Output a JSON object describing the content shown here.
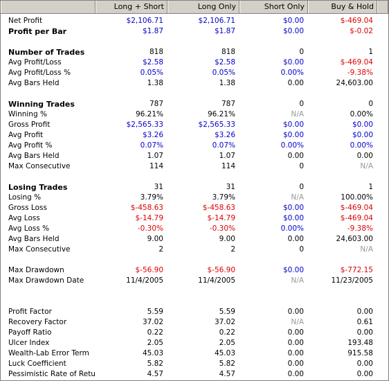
{
  "header": {
    "col1": "Long + Short",
    "col2": "Long Only",
    "col3": "Short Only",
    "col4": "Buy & Hold"
  },
  "colors": {
    "positive": "#0000cc",
    "negative": "#dd0000",
    "na": "#999999",
    "neutral": "#000000"
  },
  "rows": [
    {
      "label": "Net Profit",
      "bold": false,
      "vals": [
        "$2,106.71",
        "$2,106.71",
        "$0.00",
        "$-469.04"
      ],
      "cols": [
        "blue",
        "blue",
        "blue",
        "red"
      ]
    },
    {
      "label": "Profit per Bar",
      "bold": true,
      "vals": [
        "$1.87",
        "$1.87",
        "$0.00",
        "$-0.02"
      ],
      "cols": [
        "blue",
        "blue",
        "blue",
        "red"
      ]
    },
    {
      "gap": true
    },
    {
      "label": "Number of Trades",
      "bold": true,
      "vals": [
        "818",
        "818",
        "0",
        "1"
      ],
      "cols": [
        "black",
        "black",
        "black",
        "black"
      ]
    },
    {
      "label": "Avg Profit/Loss",
      "bold": false,
      "vals": [
        "$2.58",
        "$2.58",
        "$0.00",
        "$-469.04"
      ],
      "cols": [
        "blue",
        "blue",
        "blue",
        "red"
      ]
    },
    {
      "label": "Avg Profit/Loss %",
      "bold": false,
      "vals": [
        "0.05%",
        "0.05%",
        "0.00%",
        "-9.38%"
      ],
      "cols": [
        "blue",
        "blue",
        "blue",
        "red"
      ]
    },
    {
      "label": "Avg Bars Held",
      "bold": false,
      "vals": [
        "1.38",
        "1.38",
        "0.00",
        "24,603.00"
      ],
      "cols": [
        "black",
        "black",
        "black",
        "black"
      ]
    },
    {
      "gap": true
    },
    {
      "label": "Winning Trades",
      "bold": true,
      "vals": [
        "787",
        "787",
        "0",
        "0"
      ],
      "cols": [
        "black",
        "black",
        "black",
        "black"
      ]
    },
    {
      "label": "Winning %",
      "bold": false,
      "vals": [
        "96.21%",
        "96.21%",
        "N/A",
        "0.00%"
      ],
      "cols": [
        "black",
        "black",
        "gray",
        "black"
      ]
    },
    {
      "label": "Gross Profit",
      "bold": false,
      "vals": [
        "$2,565.33",
        "$2,565.33",
        "$0.00",
        "$0.00"
      ],
      "cols": [
        "blue",
        "blue",
        "blue",
        "blue"
      ]
    },
    {
      "label": "Avg Profit",
      "bold": false,
      "vals": [
        "$3.26",
        "$3.26",
        "$0.00",
        "$0.00"
      ],
      "cols": [
        "blue",
        "blue",
        "blue",
        "blue"
      ]
    },
    {
      "label": "Avg Profit %",
      "bold": false,
      "vals": [
        "0.07%",
        "0.07%",
        "0.00%",
        "0.00%"
      ],
      "cols": [
        "blue",
        "blue",
        "blue",
        "blue"
      ]
    },
    {
      "label": "Avg Bars Held",
      "bold": false,
      "vals": [
        "1.07",
        "1.07",
        "0.00",
        "0.00"
      ],
      "cols": [
        "black",
        "black",
        "black",
        "black"
      ]
    },
    {
      "label": "Max Consecutive",
      "bold": false,
      "vals": [
        "114",
        "114",
        "0",
        "N/A"
      ],
      "cols": [
        "black",
        "black",
        "black",
        "gray"
      ]
    },
    {
      "gap": true
    },
    {
      "label": "Losing Trades",
      "bold": true,
      "vals": [
        "31",
        "31",
        "0",
        "1"
      ],
      "cols": [
        "black",
        "black",
        "black",
        "black"
      ]
    },
    {
      "label": "Losing %",
      "bold": false,
      "vals": [
        "3.79%",
        "3.79%",
        "N/A",
        "100.00%"
      ],
      "cols": [
        "black",
        "black",
        "gray",
        "black"
      ]
    },
    {
      "label": "Gross Loss",
      "bold": false,
      "vals": [
        "$-458.63",
        "$-458.63",
        "$0.00",
        "$-469.04"
      ],
      "cols": [
        "red",
        "red",
        "blue",
        "red"
      ]
    },
    {
      "label": "Avg Loss",
      "bold": false,
      "vals": [
        "$-14.79",
        "$-14.79",
        "$0.00",
        "$-469.04"
      ],
      "cols": [
        "red",
        "red",
        "blue",
        "red"
      ]
    },
    {
      "label": "Avg Loss %",
      "bold": false,
      "vals": [
        "-0.30%",
        "-0.30%",
        "0.00%",
        "-9.38%"
      ],
      "cols": [
        "red",
        "red",
        "blue",
        "red"
      ]
    },
    {
      "label": "Avg Bars Held",
      "bold": false,
      "vals": [
        "9.00",
        "9.00",
        "0.00",
        "24,603.00"
      ],
      "cols": [
        "black",
        "black",
        "black",
        "black"
      ]
    },
    {
      "label": "Max Consecutive",
      "bold": false,
      "vals": [
        "2",
        "2",
        "0",
        "N/A"
      ],
      "cols": [
        "black",
        "black",
        "black",
        "gray"
      ]
    },
    {
      "gap": true
    },
    {
      "label": "Max Drawdown",
      "bold": false,
      "vals": [
        "$-56.90",
        "$-56.90",
        "$0.00",
        "$-772.15"
      ],
      "cols": [
        "red",
        "red",
        "blue",
        "red"
      ]
    },
    {
      "label": "Max Drawdown Date",
      "bold": false,
      "vals": [
        "11/4/2005",
        "11/4/2005",
        "N/A",
        "11/23/2005"
      ],
      "cols": [
        "black",
        "black",
        "gray",
        "black"
      ]
    },
    {
      "gap": true
    },
    {
      "gap": true
    },
    {
      "label": "Profit Factor",
      "bold": false,
      "vals": [
        "5.59",
        "5.59",
        "0.00",
        "0.00"
      ],
      "cols": [
        "black",
        "black",
        "black",
        "black"
      ]
    },
    {
      "label": "Recovery Factor",
      "bold": false,
      "vals": [
        "37.02",
        "37.02",
        "N/A",
        "0.61"
      ],
      "cols": [
        "black",
        "black",
        "gray",
        "black"
      ]
    },
    {
      "label": "Payoff Ratio",
      "bold": false,
      "vals": [
        "0.22",
        "0.22",
        "0.00",
        "0.00"
      ],
      "cols": [
        "black",
        "black",
        "black",
        "black"
      ]
    },
    {
      "label": "Ulcer Index",
      "bold": false,
      "vals": [
        "2.05",
        "2.05",
        "0.00",
        "193.48"
      ],
      "cols": [
        "black",
        "black",
        "black",
        "black"
      ]
    },
    {
      "label": "Wealth-Lab Error Term",
      "bold": false,
      "vals": [
        "45.03",
        "45.03",
        "0.00",
        "915.58"
      ],
      "cols": [
        "black",
        "black",
        "black",
        "black"
      ]
    },
    {
      "label": "Luck Coefficient",
      "bold": false,
      "vals": [
        "5.82",
        "5.82",
        "0.00",
        "0.00"
      ],
      "cols": [
        "black",
        "black",
        "black",
        "black"
      ]
    },
    {
      "label": "Pessimistic Rate of Return",
      "bold": false,
      "vals": [
        "4.57",
        "4.57",
        "0.00",
        "0.00"
      ],
      "cols": [
        "black",
        "black",
        "black",
        "black"
      ]
    }
  ]
}
